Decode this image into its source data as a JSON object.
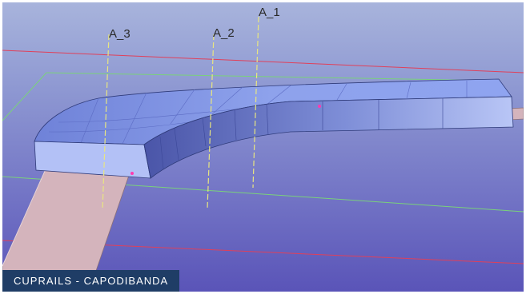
{
  "scene": {
    "axes": [
      {
        "id": "a3",
        "label": "A_3"
      },
      {
        "id": "a2",
        "label": "A_2"
      },
      {
        "id": "a1",
        "label": "A_1"
      }
    ]
  },
  "caption": {
    "text": "CUPRAILS - CAPODIBANDA"
  },
  "colors": {
    "background_top": "#a8b4dc",
    "background_bottom": "#5a54b8",
    "part_top": "#8b9ee8",
    "part_side": "#a9b8f4",
    "rail": "#d4b4bc",
    "axis_line": "#e8e680",
    "red_line": "#e0405a",
    "green_line": "#7ad27a",
    "caption_bg": "#1f3d66"
  }
}
